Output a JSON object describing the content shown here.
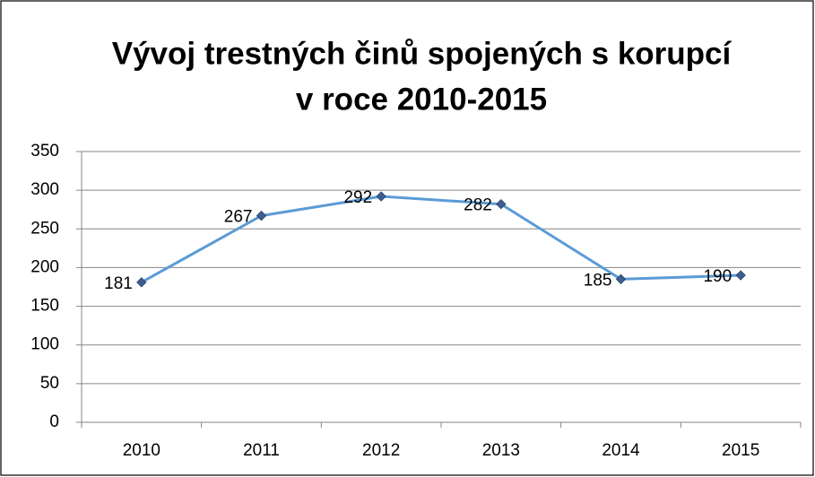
{
  "chart_data": {
    "type": "line",
    "title": [
      "Vývoj trestných činů spojených s korupcí",
      "v roce 2010-2015"
    ],
    "categories": [
      "2010",
      "2011",
      "2012",
      "2013",
      "2014",
      "2015"
    ],
    "series": [
      {
        "color": "#5b9bd5",
        "marker_color": "#3f5f8f",
        "values": [
          181,
          267,
          292,
          282,
          185,
          190
        ]
      }
    ],
    "ylim": [
      0,
      350
    ],
    "yticks": [
      0,
      50,
      100,
      150,
      200,
      250,
      300,
      350
    ],
    "grid": true
  }
}
